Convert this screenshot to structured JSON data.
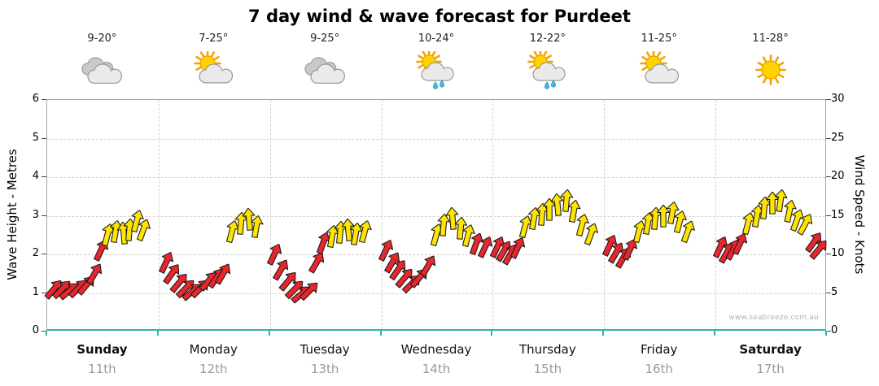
{
  "title": "7 day wind & wave forecast for Purdeet",
  "watermark": "www.seabreeze.com.au",
  "axes": {
    "left_label": "Wave Height - Metres",
    "right_label": "Wind Speed - Knots",
    "left_ticks": [
      "6",
      "5",
      "4",
      "3",
      "2",
      "1",
      "0"
    ],
    "right_ticks": [
      "30",
      "25",
      "20",
      "15",
      "10",
      "5",
      "0"
    ]
  },
  "days": [
    {
      "name": "Sunday",
      "date": "11th",
      "temp": "9-20°",
      "icon": "cloudy",
      "weekend": true
    },
    {
      "name": "Monday",
      "date": "12th",
      "temp": "7-25°",
      "icon": "partly-sunny",
      "weekend": false
    },
    {
      "name": "Tuesday",
      "date": "13th",
      "temp": "9-25°",
      "icon": "cloudy",
      "weekend": false
    },
    {
      "name": "Wednesday",
      "date": "14th",
      "temp": "10-24°",
      "icon": "sun-showers",
      "weekend": false
    },
    {
      "name": "Thursday",
      "date": "15th",
      "temp": "12-22°",
      "icon": "sun-showers",
      "weekend": false
    },
    {
      "name": "Friday",
      "date": "16th",
      "temp": "11-25°",
      "icon": "partly-sunny",
      "weekend": false
    },
    {
      "name": "Saturday",
      "date": "17th",
      "temp": "11-28°",
      "icon": "sunny",
      "weekend": true
    }
  ],
  "colors": {
    "light_wind_arrow": "#e8262d",
    "strong_wind_arrow": "#ffe400",
    "arrow_outline": "#1a1a1a",
    "time_axis": "#2fb3b3",
    "grid": "#d2d2d2"
  },
  "chart_data": {
    "type": "scatter",
    "variant": "wind-direction-arrows",
    "title": "7 day wind & wave forecast for Purdeet",
    "x": {
      "unit": "days",
      "categories": [
        "Sunday 11th",
        "Monday 12th",
        "Tuesday 13th",
        "Wednesday 14th",
        "Thursday 15th",
        "Friday 16th",
        "Saturday 17th"
      ]
    },
    "y_left_axis": {
      "label": "Wave Height - Metres",
      "range": [
        0,
        6
      ]
    },
    "y_right_axis": {
      "label": "Wind Speed - Knots",
      "range": [
        0,
        30
      ]
    },
    "grid": "dashed",
    "arrow_fields": [
      "position_fraction_of_day",
      "wind_speed_knots",
      "direction_deg_from_up",
      "color"
    ],
    "color_key": {
      "r": "red = lighter wind",
      "y": "yellow = stronger wind"
    },
    "arrows_by_day": [
      [
        [
          0.06,
          5.5,
          40,
          "r"
        ],
        [
          0.13,
          5.5,
          45,
          "r"
        ],
        [
          0.2,
          5.3,
          50,
          "r"
        ],
        [
          0.28,
          5.6,
          45,
          "r"
        ],
        [
          0.35,
          6.0,
          40,
          "r"
        ],
        [
          0.42,
          7.5,
          30,
          "r"
        ],
        [
          0.48,
          10.5,
          25,
          "r"
        ],
        [
          0.54,
          12.5,
          15,
          "y"
        ],
        [
          0.61,
          13.0,
          10,
          "y"
        ],
        [
          0.69,
          12.7,
          -5,
          "y"
        ],
        [
          0.74,
          13.2,
          5,
          "y"
        ],
        [
          0.8,
          14.3,
          15,
          "y"
        ],
        [
          0.86,
          13.2,
          20,
          "y"
        ]
      ],
      [
        [
          0.07,
          9.0,
          25,
          "r"
        ],
        [
          0.12,
          7.5,
          35,
          "r"
        ],
        [
          0.18,
          6.3,
          40,
          "r"
        ],
        [
          0.24,
          5.6,
          45,
          "r"
        ],
        [
          0.3,
          5.2,
          50,
          "r"
        ],
        [
          0.37,
          5.6,
          45,
          "r"
        ],
        [
          0.45,
          6.5,
          40,
          "r"
        ],
        [
          0.52,
          7.0,
          35,
          "r"
        ],
        [
          0.58,
          7.5,
          30,
          "r"
        ],
        [
          0.66,
          13.0,
          15,
          "y"
        ],
        [
          0.74,
          14.0,
          5,
          "y"
        ],
        [
          0.81,
          14.5,
          -5,
          "y"
        ],
        [
          0.88,
          13.6,
          10,
          "y"
        ]
      ],
      [
        [
          0.04,
          10.0,
          25,
          "r"
        ],
        [
          0.1,
          8.0,
          30,
          "r"
        ],
        [
          0.16,
          6.5,
          40,
          "r"
        ],
        [
          0.22,
          5.5,
          45,
          "r"
        ],
        [
          0.28,
          4.8,
          50,
          "r"
        ],
        [
          0.35,
          5.3,
          45,
          "r"
        ],
        [
          0.42,
          9.0,
          30,
          "r"
        ],
        [
          0.48,
          11.5,
          20,
          "r"
        ],
        [
          0.56,
          12.3,
          10,
          "y"
        ],
        [
          0.63,
          12.8,
          5,
          "y"
        ],
        [
          0.7,
          13.2,
          -5,
          "y"
        ],
        [
          0.77,
          12.6,
          10,
          "y"
        ],
        [
          0.85,
          12.9,
          15,
          "y"
        ]
      ],
      [
        [
          0.04,
          10.5,
          25,
          "r"
        ],
        [
          0.1,
          9.0,
          30,
          "r"
        ],
        [
          0.15,
          8.0,
          35,
          "r"
        ],
        [
          0.21,
          7.0,
          40,
          "r"
        ],
        [
          0.27,
          6.2,
          45,
          "r"
        ],
        [
          0.34,
          7.0,
          40,
          "r"
        ],
        [
          0.42,
          8.5,
          30,
          "r"
        ],
        [
          0.49,
          12.5,
          15,
          "y"
        ],
        [
          0.56,
          13.8,
          5,
          "y"
        ],
        [
          0.64,
          14.6,
          -5,
          "y"
        ],
        [
          0.71,
          13.4,
          5,
          "y"
        ],
        [
          0.78,
          12.4,
          15,
          "y"
        ],
        [
          0.85,
          11.4,
          20,
          "r"
        ],
        [
          0.93,
          11.0,
          25,
          "r"
        ]
      ],
      [
        [
          0.04,
          11.0,
          25,
          "r"
        ],
        [
          0.1,
          10.4,
          30,
          "r"
        ],
        [
          0.16,
          10.0,
          30,
          "r"
        ],
        [
          0.22,
          10.8,
          25,
          "r"
        ],
        [
          0.29,
          13.6,
          15,
          "y"
        ],
        [
          0.37,
          14.6,
          10,
          "y"
        ],
        [
          0.44,
          15.2,
          5,
          "y"
        ],
        [
          0.51,
          15.8,
          0,
          "y"
        ],
        [
          0.58,
          16.4,
          -5,
          "y"
        ],
        [
          0.66,
          17.0,
          5,
          "y"
        ],
        [
          0.73,
          15.6,
          10,
          "y"
        ],
        [
          0.8,
          13.8,
          15,
          "y"
        ],
        [
          0.88,
          12.6,
          20,
          "y"
        ]
      ],
      [
        [
          0.05,
          11.2,
          25,
          "r"
        ],
        [
          0.11,
          10.2,
          30,
          "r"
        ],
        [
          0.17,
          9.6,
          30,
          "r"
        ],
        [
          0.23,
          10.6,
          25,
          "r"
        ],
        [
          0.31,
          13.0,
          15,
          "y"
        ],
        [
          0.39,
          14.0,
          10,
          "y"
        ],
        [
          0.46,
          14.6,
          5,
          "y"
        ],
        [
          0.53,
          15.0,
          0,
          "y"
        ],
        [
          0.61,
          15.4,
          10,
          "y"
        ],
        [
          0.68,
          14.2,
          15,
          "y"
        ],
        [
          0.75,
          13.0,
          20,
          "y"
        ]
      ],
      [
        [
          0.04,
          11.0,
          25,
          "r"
        ],
        [
          0.1,
          10.2,
          30,
          "r"
        ],
        [
          0.16,
          10.6,
          28,
          "r"
        ],
        [
          0.22,
          11.4,
          25,
          "r"
        ],
        [
          0.29,
          14.0,
          15,
          "y"
        ],
        [
          0.37,
          15.0,
          10,
          "y"
        ],
        [
          0.44,
          16.0,
          5,
          "y"
        ],
        [
          0.51,
          16.6,
          0,
          "y"
        ],
        [
          0.58,
          17.0,
          8,
          "y"
        ],
        [
          0.66,
          15.6,
          12,
          "y"
        ],
        [
          0.73,
          14.4,
          20,
          "y"
        ],
        [
          0.8,
          13.9,
          28,
          "y"
        ],
        [
          0.88,
          11.6,
          35,
          "r"
        ],
        [
          0.93,
          10.6,
          40,
          "r"
        ]
      ]
    ]
  }
}
